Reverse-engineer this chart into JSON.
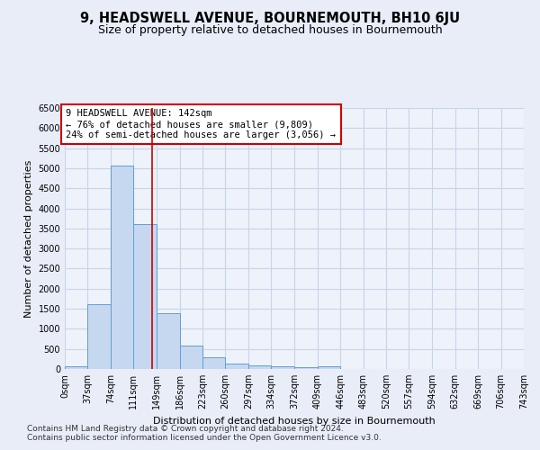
{
  "title": "9, HEADSWELL AVENUE, BOURNEMOUTH, BH10 6JU",
  "subtitle": "Size of property relative to detached houses in Bournemouth",
  "xlabel": "Distribution of detached houses by size in Bournemouth",
  "ylabel": "Number of detached properties",
  "footer_line1": "Contains HM Land Registry data © Crown copyright and database right 2024.",
  "footer_line2": "Contains public sector information licensed under the Open Government Licence v3.0.",
  "bin_edges": [
    0,
    37,
    74,
    111,
    149,
    186,
    223,
    260,
    297,
    334,
    372,
    409,
    446,
    483,
    520,
    557,
    594,
    632,
    669,
    706,
    743
  ],
  "bar_heights": [
    75,
    1625,
    5075,
    3600,
    1400,
    575,
    285,
    140,
    100,
    75,
    50,
    60,
    0,
    0,
    0,
    0,
    0,
    0,
    0,
    0
  ],
  "bar_color": "#c5d8f0",
  "bar_edge_color": "#5f9fd4",
  "grid_color": "#c8d4e8",
  "vline_x": 142,
  "vline_color": "#cc0000",
  "annotation_line1": "9 HEADSWELL AVENUE: 142sqm",
  "annotation_line2": "← 76% of detached houses are smaller (9,809)",
  "annotation_line3": "24% of semi-detached houses are larger (3,056) →",
  "annotation_box_color": "#cc0000",
  "ylim": [
    0,
    6500
  ],
  "yticks": [
    0,
    500,
    1000,
    1500,
    2000,
    2500,
    3000,
    3500,
    4000,
    4500,
    5000,
    5500,
    6000,
    6500
  ],
  "background_color": "#e8edf8",
  "plot_bg_color": "#eef2fb",
  "title_fontsize": 10.5,
  "subtitle_fontsize": 9,
  "axis_label_fontsize": 8,
  "tick_fontsize": 7,
  "footer_fontsize": 6.5
}
